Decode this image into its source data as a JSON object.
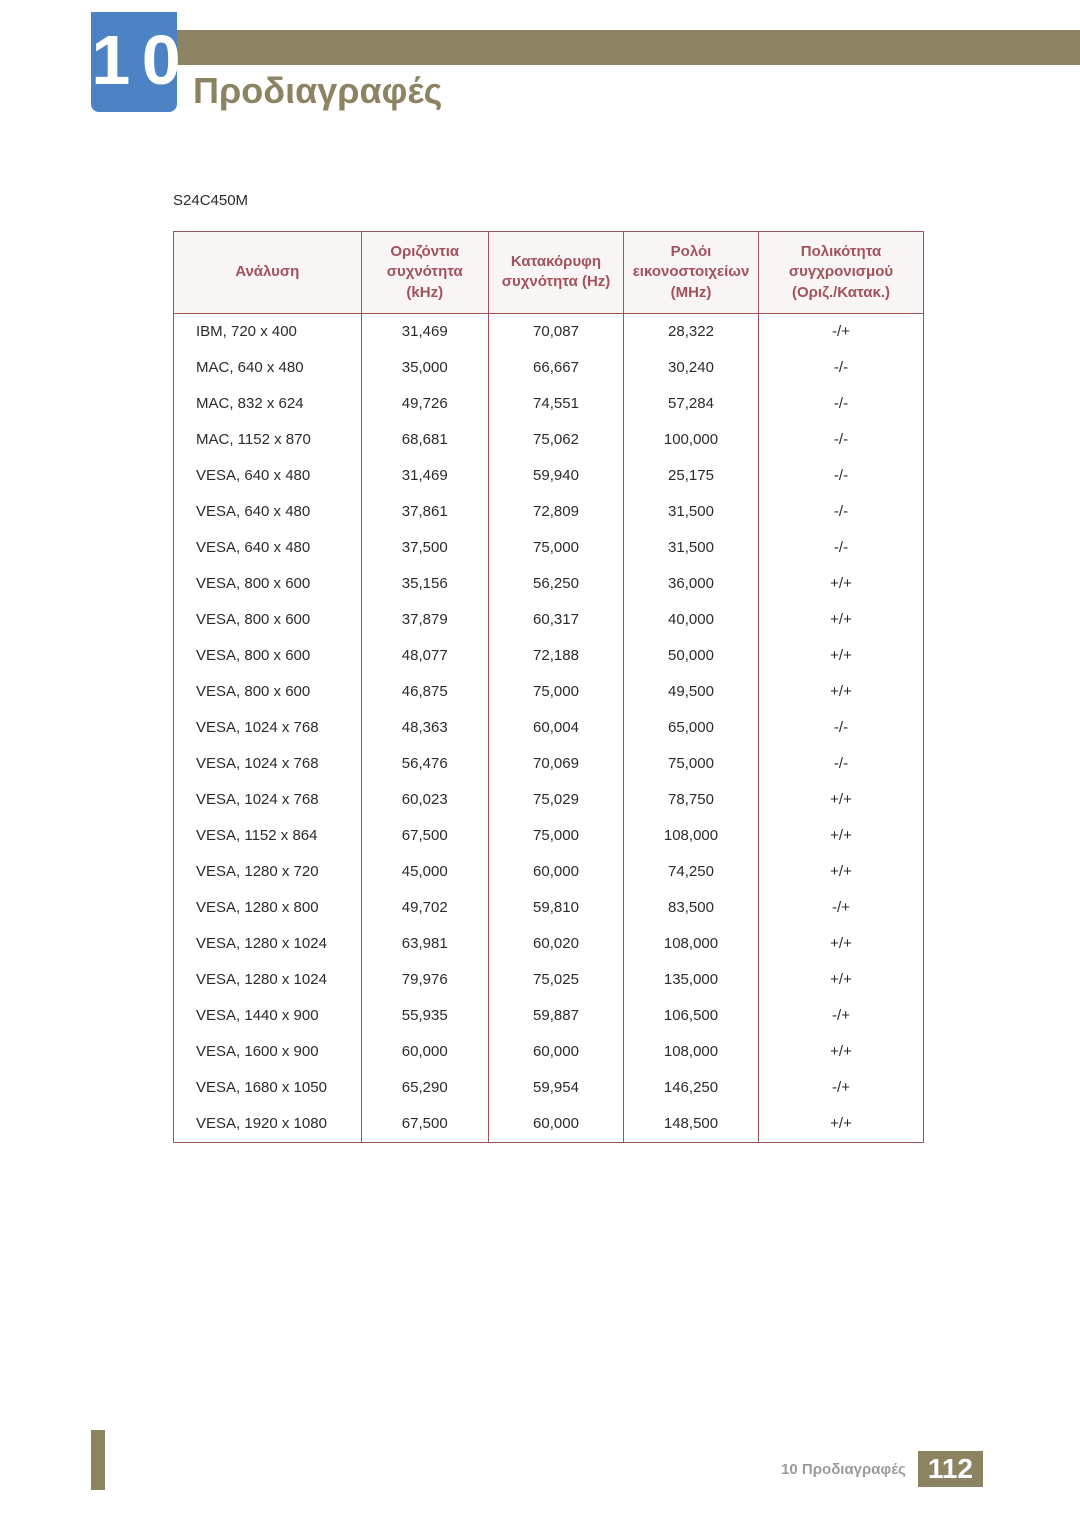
{
  "chapter_number": "1 0",
  "page_title": "Προδιαγραφές",
  "model": "S24C450M",
  "footer_label": "10 Προδιαγραφές",
  "page_number": "112",
  "table": {
    "headers": {
      "resolution": "Ανάλυση",
      "hfreq": "Οριζόντια συχνότητα (kHz)",
      "vfreq": "Κατακόρυφη συχνότητα (Hz)",
      "pixel_clock": "Ρολόι εικονοστοιχείων (MHz)",
      "polarity": "Πολικότητα συγχρονισμού (Οριζ./Κατακ.)"
    },
    "rows": [
      {
        "res": "IBM, 720 x 400",
        "h": "31,469",
        "v": "70,087",
        "p": "28,322",
        "pol": "-/+"
      },
      {
        "res": "MAC, 640 x 480",
        "h": "35,000",
        "v": "66,667",
        "p": "30,240",
        "pol": "-/-"
      },
      {
        "res": "MAC, 832 x 624",
        "h": "49,726",
        "v": "74,551",
        "p": "57,284",
        "pol": "-/-"
      },
      {
        "res": "MAC, 1152 x 870",
        "h": "68,681",
        "v": "75,062",
        "p": "100,000",
        "pol": "-/-"
      },
      {
        "res": "VESA, 640 x 480",
        "h": "31,469",
        "v": "59,940",
        "p": "25,175",
        "pol": "-/-"
      },
      {
        "res": "VESA, 640 x 480",
        "h": "37,861",
        "v": "72,809",
        "p": "31,500",
        "pol": "-/-"
      },
      {
        "res": "VESA, 640 x 480",
        "h": "37,500",
        "v": "75,000",
        "p": "31,500",
        "pol": "-/-"
      },
      {
        "res": "VESA, 800 x 600",
        "h": "35,156",
        "v": "56,250",
        "p": "36,000",
        "pol": "+/+"
      },
      {
        "res": "VESA, 800 x 600",
        "h": "37,879",
        "v": "60,317",
        "p": "40,000",
        "pol": "+/+"
      },
      {
        "res": "VESA, 800 x 600",
        "h": "48,077",
        "v": "72,188",
        "p": "50,000",
        "pol": "+/+"
      },
      {
        "res": "VESA, 800 x 600",
        "h": "46,875",
        "v": "75,000",
        "p": "49,500",
        "pol": "+/+"
      },
      {
        "res": "VESA, 1024 x 768",
        "h": "48,363",
        "v": "60,004",
        "p": "65,000",
        "pol": "-/-"
      },
      {
        "res": "VESA, 1024 x 768",
        "h": "56,476",
        "v": "70,069",
        "p": "75,000",
        "pol": "-/-"
      },
      {
        "res": "VESA, 1024 x 768",
        "h": "60,023",
        "v": "75,029",
        "p": "78,750",
        "pol": "+/+"
      },
      {
        "res": "VESA, 1152 x 864",
        "h": "67,500",
        "v": "75,000",
        "p": "108,000",
        "pol": "+/+"
      },
      {
        "res": "VESA, 1280 x 720",
        "h": "45,000",
        "v": "60,000",
        "p": "74,250",
        "pol": "+/+"
      },
      {
        "res": "VESA, 1280 x 800",
        "h": "49,702",
        "v": "59,810",
        "p": "83,500",
        "pol": "-/+"
      },
      {
        "res": "VESA, 1280 x 1024",
        "h": "63,981",
        "v": "60,020",
        "p": "108,000",
        "pol": "+/+"
      },
      {
        "res": "VESA, 1280 x 1024",
        "h": "79,976",
        "v": "75,025",
        "p": "135,000",
        "pol": "+/+"
      },
      {
        "res": "VESA, 1440 x 900",
        "h": "55,935",
        "v": "59,887",
        "p": "106,500",
        "pol": "-/+"
      },
      {
        "res": "VESA, 1600 x 900",
        "h": "60,000",
        "v": "60,000",
        "p": "108,000",
        "pol": "+/+"
      },
      {
        "res": "VESA, 1680 x 1050",
        "h": "65,290",
        "v": "59,954",
        "p": "146,250",
        "pol": "-/+"
      },
      {
        "res": "VESA, 1920 x 1080",
        "h": "67,500",
        "v": "60,000",
        "p": "148,500",
        "pol": "+/+"
      }
    ]
  },
  "column_widths": [
    "25%",
    "17%",
    "18%",
    "18%",
    "22%"
  ],
  "styling": {
    "accent_color": "#8c8363",
    "badge_color": "#4d83c4",
    "table_border": "#a1525c",
    "header_bg": "#faf5f5",
    "header_text": "#a1525c",
    "body_text": "#2b2b2b",
    "title_fontsize": 36,
    "header_fontsize": 15,
    "cell_fontsize": 15
  }
}
